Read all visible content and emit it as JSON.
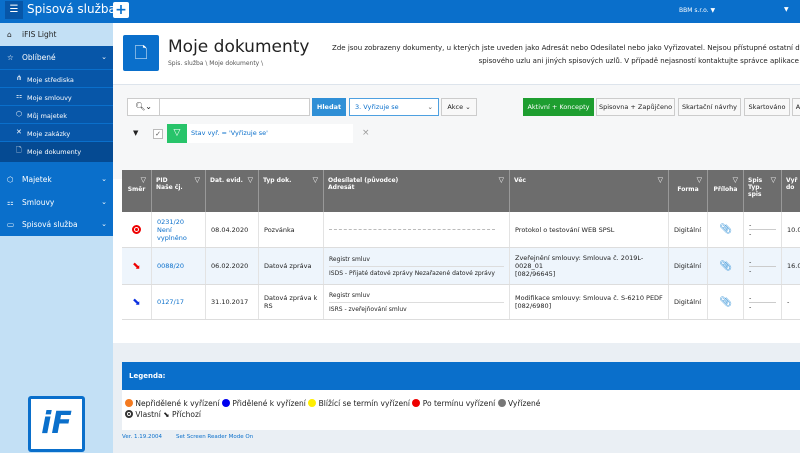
{
  "header": {
    "menu_icon": "hamburger-icon",
    "app_title": "Spisová služba",
    "add_icon": "plus-icon",
    "org": "BBM s.r.o. ▼",
    "user_menu": "▼"
  },
  "sidebar": {
    "home": {
      "label": "iFIS Light",
      "icon": "home-icon"
    },
    "favorites": {
      "label": "Oblíbené",
      "icon": "star-icon"
    },
    "sub_items": [
      {
        "label": "Moje střediska",
        "icon": "hierarchy-icon"
      },
      {
        "label": "Moje smlouvy",
        "icon": "contract-icon"
      },
      {
        "label": "Můj majetek",
        "icon": "asset-icon"
      },
      {
        "label": "Moje zakázky",
        "icon": "orders-icon"
      },
      {
        "label": "Moje dokumenty",
        "icon": "document-user-icon"
      }
    ],
    "sections": [
      {
        "label": "Majetek",
        "icon": "cube-icon"
      },
      {
        "label": "Smlouvy",
        "icon": "contract-icon"
      },
      {
        "label": "Spisová služba",
        "icon": "folder-icon"
      }
    ]
  },
  "page": {
    "title": "Moje dokumenty",
    "breadcrumb": "Spis. služba  \\  Moje dokumenty  \\",
    "description_line1": "Zde jsou zobrazeny dokumenty, u kterých jste uveden jako Adresát nebo Odesílatel nebo jako Vyřizovatel. Nejsou přístupné ostatní dok",
    "description_line2": "spisového uzlu ani jiných spisových uzlů. V případě nejasností kontaktujte správce aplikace m"
  },
  "toolbar": {
    "search_value": "",
    "search_button": "Hledat",
    "report_select": "3. Vyřizuje se",
    "actions": "Akce",
    "tabs": [
      "Aktivní + Koncepty",
      "Spisovna + Zapůjčeno",
      "Skartační návrhy",
      "Skartováno",
      "A"
    ]
  },
  "filter": {
    "text": "Stav vyř. = 'Vyřizuje se'",
    "remove": "×"
  },
  "table": {
    "columns": [
      [
        "Směr"
      ],
      [
        "PID",
        "Naše čj."
      ],
      [
        "Dat. evid."
      ],
      [
        "Typ dok."
      ],
      [
        "Odesílatel (původce)",
        "Adresát"
      ],
      [
        "Věc"
      ],
      [
        "Forma"
      ],
      [
        "Příloha"
      ],
      [
        "Spis",
        "Typ.",
        "spis"
      ],
      [
        "Vyř",
        "do"
      ]
    ],
    "rows": [
      {
        "direction": "own",
        "pid": "0231/20",
        "cj": "Není vyplněno",
        "date": "08.04.2020",
        "type": "Pozvánka",
        "sender": "",
        "recipient": "",
        "subject": "Protokol o testování WEB SPSL",
        "subject2": "",
        "form": "Digitální",
        "spis": "-",
        "typspis": "-",
        "due": "10.0"
      },
      {
        "direction": "incoming-red",
        "pid": "0088/20",
        "cj": "",
        "date": "06.02.2020",
        "type": "Datová zpráva",
        "sender": "Registr smluv",
        "recipient": "ISDS - Přijaté datové zprávy Nezařazené datové zprávy",
        "subject": "Zveřejnění smlouvy: Smlouva č. 2019L-0028_01",
        "subject2": "[082/96645]",
        "form": "Digitální",
        "spis": "-",
        "typspis": "-",
        "due": "16.0"
      },
      {
        "direction": "incoming-blue",
        "pid": "0127/17",
        "cj": "",
        "date": "31.10.2017",
        "type": "Datová zpráva k RS",
        "sender": "Registr smluv",
        "recipient": "ISRS - zveřejňování smluv",
        "subject": "Modifikace smlouvy: Smlouva č. S-6210 PEDF",
        "subject2": "[082/6980]",
        "form": "Digitální",
        "spis": "-",
        "typspis": "-",
        "due": "-"
      }
    ]
  },
  "legend": {
    "title": "Legenda:",
    "items": [
      {
        "label": "Nepřidělené k vyřízení",
        "color": "#f47a20"
      },
      {
        "label": "Přidělené k vyřízení",
        "color": "#0000ee"
      },
      {
        "label": "Blížící se termín vyřízení",
        "color": "#ffee00"
      },
      {
        "label": "Po termínu vyřízení",
        "color": "#ee0000"
      },
      {
        "label": "Vyřízené",
        "color": "#777777"
      }
    ],
    "own": "Vlastní",
    "incoming": "Příchozí"
  },
  "footer": {
    "version": "Ver. 1.19.2004",
    "screen_reader": "Set Screen Reader Mode On"
  },
  "colors": {
    "brand": "#0a6fcb",
    "active_tab": "#1e9e30",
    "table_header": "#6d6d6d"
  }
}
